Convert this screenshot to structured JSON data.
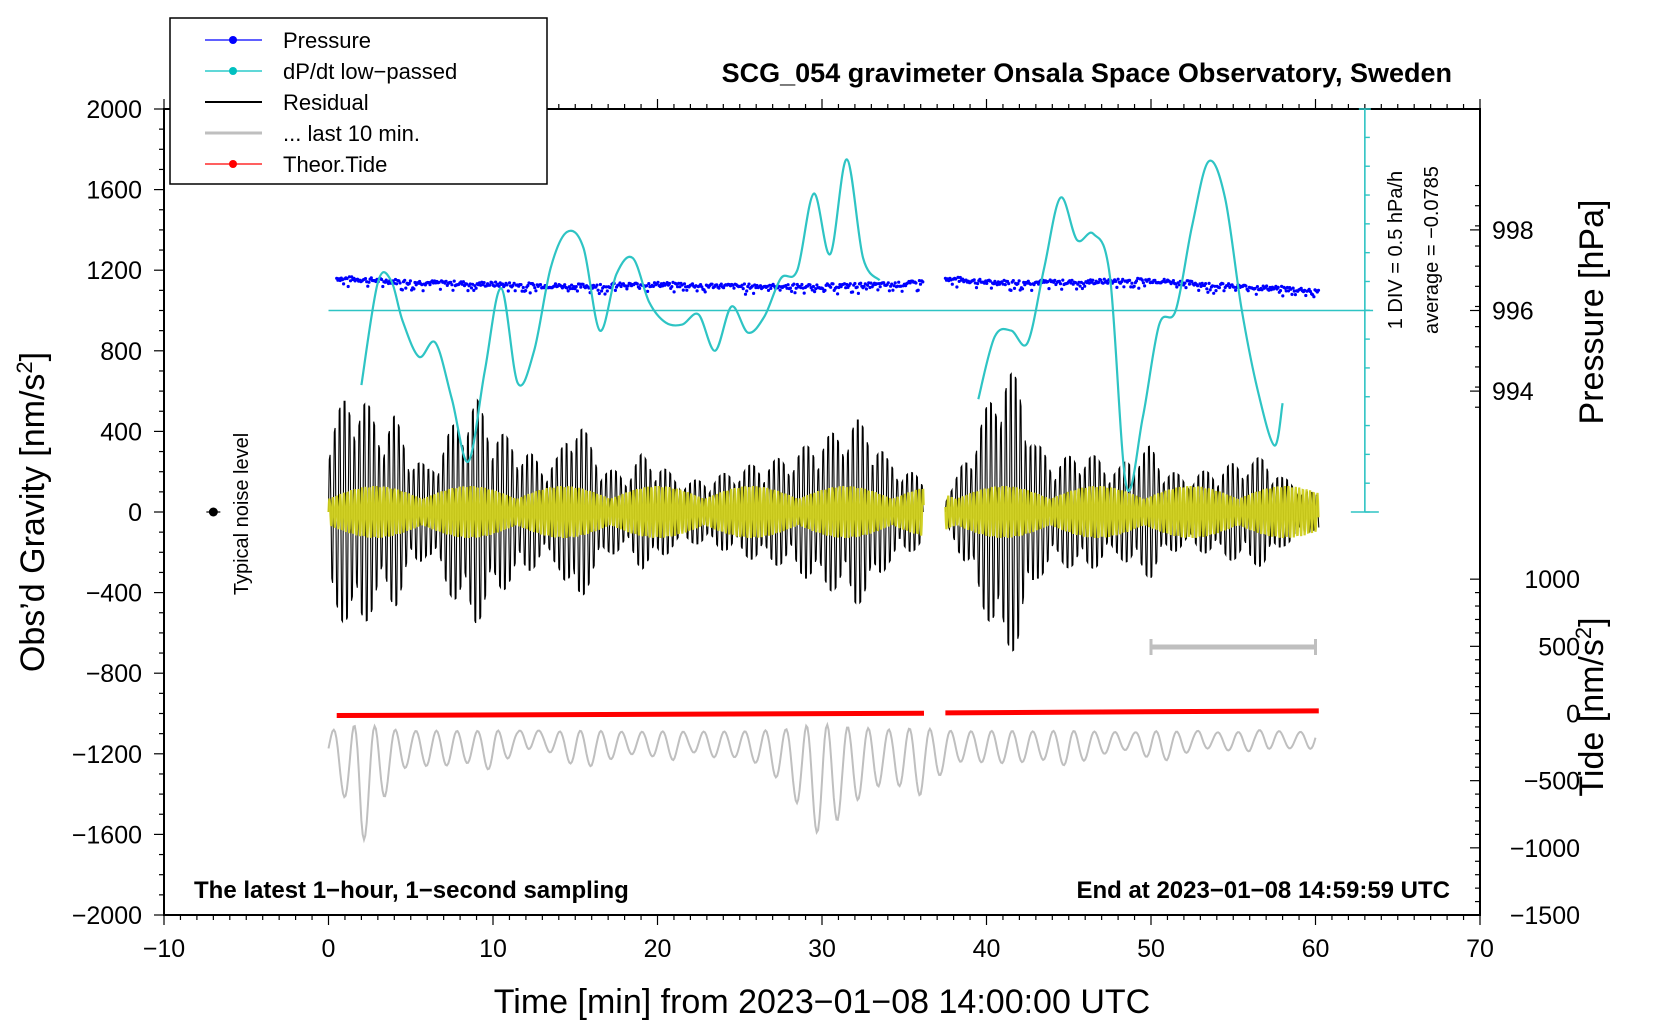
{
  "chart_data": {
    "type": "line",
    "title": "SCG_054 gravimeter Onsala Space Observatory, Sweden",
    "xlabel": "Time [min] from 2023−01−08 14:00:00 UTC",
    "ylabel_left_prefix": "Obs’d Gravity [nm/s",
    "ylabel_left_suffix": "]",
    "ylabel_right_top": "Pressure [hPa]",
    "ylabel_right_bottom_prefix": "Tide [nm/s",
    "ylabel_right_bottom_suffix": "]",
    "superscript": "2",
    "xlim": [
      -10,
      70
    ],
    "ylim": [
      -2000,
      2000
    ],
    "x_ticks": [
      -10,
      0,
      10,
      20,
      30,
      40,
      50,
      60,
      70
    ],
    "x_tick_labels": [
      "−10",
      "0",
      "10",
      "20",
      "30",
      "40",
      "50",
      "60",
      "70"
    ],
    "y_ticks": [
      -2000,
      -1600,
      -1200,
      -800,
      -400,
      0,
      400,
      800,
      1200,
      1600,
      2000
    ],
    "y_tick_labels": [
      "−2000",
      "−1600",
      "−1200",
      "−800",
      "−400",
      "0",
      "400",
      "800",
      "1200",
      "1600",
      "2000"
    ],
    "pressure_axis": {
      "ticks": [
        994,
        996,
        998
      ],
      "tick_labels": [
        "994",
        "996",
        "998"
      ],
      "ref_hpa": 996,
      "ref_gravity": 1000,
      "gravity_per_hpa": 200
    },
    "tide_axis": {
      "ticks": [
        -1500,
        -1000,
        -500,
        0,
        500,
        1000
      ],
      "tick_labels": [
        "−1500",
        "−1000",
        "−500",
        "0",
        "500",
        "1000"
      ],
      "gravity_at_zero": -1000,
      "gravity_per_unit": 0.6667
    },
    "dpdt_scale": {
      "label_div": "1 DIV = 0.5 hPa/h",
      "label_avg": "average = −0.0785",
      "baseline": 1000
    },
    "legend": [
      {
        "label": "Pressure",
        "color": "#0000ff",
        "style": "line-dot"
      },
      {
        "label": "dP/dt low−passed",
        "color": "#00c0c0",
        "style": "line-dot"
      },
      {
        "label": "Residual",
        "color": "#000000",
        "style": "line"
      },
      {
        "label": "... last 10 min.",
        "color": "#bfbfbf",
        "style": "line"
      },
      {
        "label": "Theor.Tide",
        "color": "#ff0000",
        "style": "line-dot"
      }
    ],
    "noise_label": "Typical noise level",
    "noise_point": {
      "x": -7,
      "y": 0
    },
    "bottom_left_note": "The latest 1−hour, 1−second sampling",
    "bottom_right_note": "End at 2023−01−08 14:59:59 UTC",
    "bar_segment": {
      "x": [
        50,
        60
      ],
      "y": -670
    },
    "series": [
      {
        "name": "dP/dt low-passed",
        "color": "#2ec4c4",
        "x": [
          2,
          3,
          3.8,
          4.5,
          5.5,
          6.5,
          7.5,
          8.5,
          9.5,
          10.5,
          11.5,
          12.5,
          13.5,
          14.5,
          15.5,
          16.5,
          17.5,
          18.5,
          19.5,
          20.5,
          21.5,
          22.5,
          23.5,
          24.5,
          25.5,
          26.5,
          27.5,
          28.5,
          29.5,
          30.5,
          31.5,
          32.5,
          33.5
        ],
        "y": [
          630,
          1140,
          1150,
          950,
          770,
          840,
          560,
          250,
          700,
          1110,
          640,
          800,
          1210,
          1390,
          1310,
          900,
          1180,
          1260,
          1040,
          940,
          930,
          980,
          800,
          1020,
          890,
          970,
          1160,
          1200,
          1580,
          1280,
          1750,
          1260,
          1150
        ]
      },
      {
        "name": "dP/dt low-passed (after gap)",
        "color": "#2ec4c4",
        "x": [
          39.5,
          40.5,
          41.5,
          42.5,
          43.5,
          44.5,
          45.5,
          46.5,
          47.5,
          48.5,
          49.5,
          50.5,
          51.5,
          52.5,
          53.5,
          54.5,
          55.5,
          56.5,
          57.5,
          58
        ],
        "y": [
          560,
          870,
          900,
          840,
          1210,
          1560,
          1350,
          1380,
          1170,
          130,
          470,
          930,
          1000,
          1420,
          1740,
          1560,
          1010,
          600,
          330,
          540
        ]
      },
      {
        "name": "Pressure",
        "color": "#0000ff",
        "units": "hPa",
        "x": [
          0.5,
          5,
          10,
          15,
          20,
          25,
          30,
          35,
          36,
          37.5,
          40,
          45,
          50,
          55,
          60
        ],
        "y": [
          996.8,
          996.7,
          996.65,
          996.6,
          996.65,
          996.6,
          996.6,
          996.65,
          996.7,
          996.8,
          996.7,
          996.7,
          996.75,
          996.6,
          996.5
        ]
      },
      {
        "name": "Residual envelope",
        "color": "#000000",
        "x": [
          0,
          1,
          2,
          3,
          4,
          5,
          6,
          7,
          8,
          9,
          10,
          11,
          12,
          13,
          14,
          15,
          16,
          17,
          18,
          19,
          20,
          21,
          22,
          23,
          24,
          25,
          26,
          27,
          28,
          29,
          30,
          31,
          32,
          33,
          34,
          35,
          36,
          37.5,
          38,
          39,
          40,
          41,
          42,
          43,
          44,
          45,
          46,
          47,
          48,
          49,
          50,
          51,
          52,
          53,
          54,
          55,
          56,
          57,
          58,
          59,
          60
        ],
        "y": [
          500,
          650,
          700,
          500,
          560,
          350,
          250,
          400,
          580,
          650,
          500,
          420,
          360,
          280,
          320,
          600,
          380,
          250,
          220,
          330,
          300,
          200,
          180,
          190,
          220,
          250,
          280,
          300,
          320,
          380,
          440,
          460,
          540,
          480,
          300,
          250,
          200,
          100,
          160,
          380,
          600,
          850,
          760,
          400,
          300,
          320,
          350,
          300,
          250,
          350,
          380,
          250,
          200,
          230,
          250,
          280,
          300,
          320,
          200,
          150,
          100
        ]
      },
      {
        "name": "Residual yellow (filtered)",
        "color": "#cfcf1a",
        "amplitude": 130
      },
      {
        "name": "Theor.Tide",
        "color": "#ff0000",
        "units": "nm/s2",
        "x": [
          0.5,
          36.2,
          37.5,
          60
        ],
        "y": [
          -15,
          2,
          5,
          20
        ]
      },
      {
        "name": "last 10 min",
        "color": "#bfbfbf",
        "units": "nm/s2",
        "x": [
          0,
          1,
          2,
          3,
          4,
          5,
          6,
          7,
          8,
          9,
          10,
          11,
          12,
          13,
          14,
          15,
          16,
          17,
          18,
          19,
          20,
          21,
          22,
          23,
          24,
          25,
          26,
          27,
          28,
          29,
          30,
          31,
          32,
          33,
          34,
          35,
          36,
          37,
          38,
          39,
          40,
          41,
          42,
          43,
          44,
          45,
          46,
          47,
          48,
          49,
          50,
          51,
          52,
          53,
          54,
          55,
          56,
          57,
          58,
          59,
          60
        ],
        "y": [
          -260,
          -370,
          -530,
          -410,
          -300,
          -250,
          -260,
          -260,
          -250,
          -250,
          -280,
          -230,
          -170,
          -200,
          -230,
          -260,
          -260,
          -240,
          -220,
          -220,
          -230,
          -240,
          -210,
          -230,
          -230,
          -230,
          -250,
          -290,
          -330,
          -450,
          -500,
          -440,
          -380,
          -350,
          -300,
          -340,
          -360,
          -300,
          -250,
          -240,
          -250,
          -250,
          -250,
          -230,
          -250,
          -260,
          -240,
          -220,
          -210,
          -200,
          -240,
          -240,
          -220,
          -190,
          -200,
          -210,
          -210,
          -180,
          -200,
          -200,
          -180
        ]
      }
    ]
  }
}
